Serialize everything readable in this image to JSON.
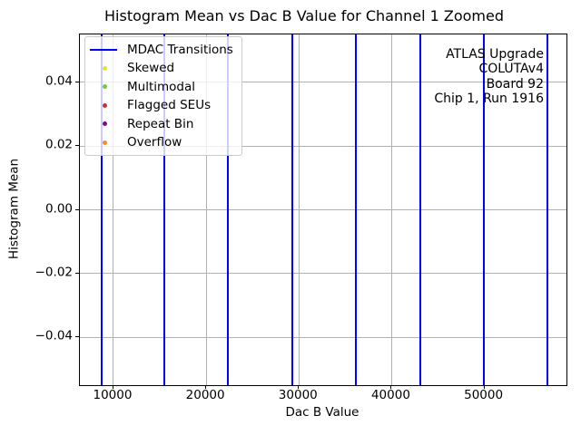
{
  "chart_data": {
    "type": "line",
    "title": "Histogram Mean vs Dac B Value for Channel 1 Zoomed",
    "xlabel": "Dac B Value",
    "ylabel": "Histogram Mean",
    "xlim": [
      6380,
      58850
    ],
    "ylim": [
      -0.055,
      0.055
    ],
    "grid": true,
    "grid_color": "#b0b0b0",
    "x_ticks": [
      {
        "value": 10000,
        "label": "10000"
      },
      {
        "value": 20000,
        "label": "20000"
      },
      {
        "value": 30000,
        "label": "30000"
      },
      {
        "value": 40000,
        "label": "40000"
      },
      {
        "value": 50000,
        "label": "50000"
      }
    ],
    "y_ticks": [
      {
        "value": 0.04,
        "label": "0.04"
      },
      {
        "value": 0.02,
        "label": "0.02"
      },
      {
        "value": 0.0,
        "label": "0.00"
      },
      {
        "value": -0.02,
        "label": "−0.02"
      },
      {
        "value": -0.04,
        "label": "−0.04"
      }
    ],
    "mdac_transitions": {
      "name": "MDAC Transitions",
      "color": "#0000ff",
      "x": [
        8700,
        15480,
        22340,
        29260,
        36140,
        43060,
        49910,
        56760
      ]
    },
    "scatter_series": [
      {
        "name": "Skewed",
        "color": "#e6e619",
        "points": []
      },
      {
        "name": "Multimodal",
        "color": "#67d41f",
        "points": []
      },
      {
        "name": "Flagged SEUs",
        "color": "#cb3234",
        "points": []
      },
      {
        "name": "Repeat Bin",
        "color": "#7a0f7a",
        "points": []
      },
      {
        "name": "Overflow",
        "color": "#fb8b1e",
        "points": []
      }
    ],
    "legend": {
      "position": "upper left",
      "entries": [
        {
          "label": "MDAC Transitions",
          "marker": "line",
          "color": "#0000ff"
        },
        {
          "label": "Skewed",
          "marker": "dot",
          "color": "#e6e619"
        },
        {
          "label": "Multimodal",
          "marker": "dot",
          "color": "#67d41f"
        },
        {
          "label": "Flagged SEUs",
          "marker": "dot",
          "color": "#cb3234"
        },
        {
          "label": "Repeat Bin",
          "marker": "dot",
          "color": "#7a0f7a"
        },
        {
          "label": "Overflow",
          "marker": "dot",
          "color": "#fb8b1e"
        }
      ]
    },
    "annotation": {
      "alignment": "right",
      "lines": [
        "ATLAS Upgrade",
        "COLUTAv4",
        "Board 92",
        "Chip 1, Run 1916"
      ]
    }
  }
}
